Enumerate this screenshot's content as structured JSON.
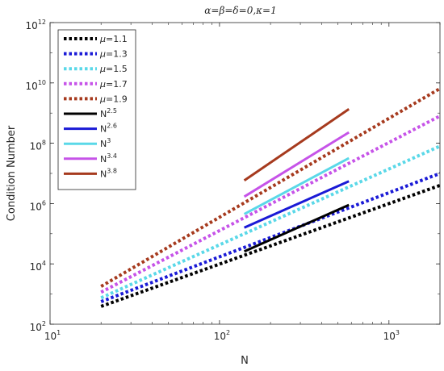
{
  "chart_data": {
    "type": "line",
    "title": "α=β=δ=0,κ=1",
    "xlabel": "N",
    "ylabel": "Condition Number",
    "xscale": "log",
    "yscale": "log",
    "xlim": [
      10,
      2000
    ],
    "ylim": [
      100,
      1000000000000
    ],
    "grid": false,
    "legend_position": "top-left",
    "x_ticks": [
      {
        "base": "10",
        "exp": "1",
        "value": 10
      },
      {
        "base": "10",
        "exp": "2",
        "value": 100
      },
      {
        "base": "10",
        "exp": "3",
        "value": 1000
      }
    ],
    "y_ticks": [
      {
        "base": "10",
        "exp": "2",
        "value": 100
      },
      {
        "base": "10",
        "exp": "4",
        "value": 10000
      },
      {
        "base": "10",
        "exp": "6",
        "value": 1000000
      },
      {
        "base": "10",
        "exp": "8",
        "value": 100000000
      },
      {
        "base": "10",
        "exp": "10",
        "value": 10000000000
      },
      {
        "base": "10",
        "exp": "12",
        "value": 1000000000000
      }
    ],
    "series": [
      {
        "name_prefix": "μ",
        "name_suffix": "=1.1",
        "name_sup": "",
        "style": "dotted",
        "color": "#000000",
        "x": [
          20,
          2000
        ],
        "y": [
          390,
          4000000
        ]
      },
      {
        "name_prefix": "μ",
        "name_suffix": "=1.3",
        "name_sup": "",
        "style": "dotted",
        "color": "#1a1ad6",
        "x": [
          20,
          2000
        ],
        "y": [
          560,
          10000000
        ]
      },
      {
        "name_prefix": "μ",
        "name_suffix": "=1.5",
        "name_sup": "",
        "style": "dotted",
        "color": "#5ad8e8",
        "x": [
          20,
          2000
        ],
        "y": [
          750,
          80000000
        ]
      },
      {
        "name_prefix": "μ",
        "name_suffix": "=1.7",
        "name_sup": "",
        "style": "dotted",
        "color": "#c653e8",
        "x": [
          20,
          2000
        ],
        "y": [
          1150,
          800000000
        ]
      },
      {
        "name_prefix": "μ",
        "name_suffix": "=1.9",
        "name_sup": "",
        "style": "dotted",
        "color": "#a63a1e",
        "x": [
          20,
          2000
        ],
        "y": [
          1800,
          6500000000
        ]
      },
      {
        "name_prefix": "N",
        "name_suffix": "",
        "name_sup": "2.5",
        "style": "solid",
        "color": "#000000",
        "x": [
          140,
          580
        ],
        "y": [
          26000,
          900000
        ]
      },
      {
        "name_prefix": "N",
        "name_suffix": "",
        "name_sup": "2.6",
        "style": "solid",
        "color": "#1a1ad6",
        "x": [
          140,
          580
        ],
        "y": [
          160000,
          5500000
        ]
      },
      {
        "name_prefix": "N",
        "name_suffix": "",
        "name_sup": "3",
        "style": "solid",
        "color": "#5ad8e8",
        "x": [
          140,
          580
        ],
        "y": [
          450000,
          32000000
        ]
      },
      {
        "name_prefix": "N",
        "name_suffix": "",
        "name_sup": "3.4",
        "style": "solid",
        "color": "#c653e8",
        "x": [
          140,
          580
        ],
        "y": [
          1700000,
          230000000
        ]
      },
      {
        "name_prefix": "N",
        "name_suffix": "",
        "name_sup": "3.8",
        "style": "solid",
        "color": "#a63a1e",
        "x": [
          140,
          580
        ],
        "y": [
          5800000,
          1350000000
        ]
      }
    ]
  }
}
